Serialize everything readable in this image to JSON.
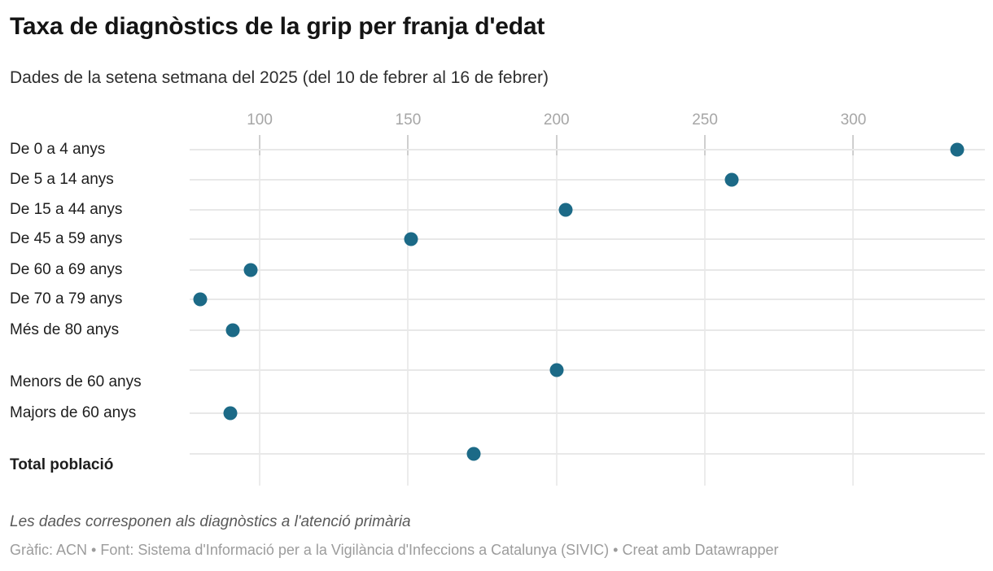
{
  "header": {
    "title": "Taxa de diagnòstics de la grip per franja d'edat",
    "subtitle": "Dades de la setena setmana del 2025 (del 10 de febrer al 16 de febrer)"
  },
  "chart_data": {
    "type": "scatter",
    "variant": "dot-plot",
    "title": "Taxa de diagnòstics de la grip per franja d'edat",
    "subtitle": "Dades de la setena setmana del 2025 (del 10 de febrer al 16 de febrer)",
    "categories": [
      "De 0 a 4 anys",
      "De 5 a 14 anys",
      "De 15 a 44 anys",
      "De 45 a 59 anys",
      "De 60 a 69 anys",
      "De 70 a 79 anys",
      "Més de 80 anys",
      "Menors de 60 anys",
      "Majors de 60 anys",
      "Total població"
    ],
    "values": [
      335,
      259,
      203,
      151,
      97,
      80,
      91,
      200,
      90,
      172
    ],
    "bold_categories": [
      "Total població"
    ],
    "group_gaps_after": [
      "Més de 80 anys",
      "Majors de 60 anys"
    ],
    "x_ticks": [
      100,
      150,
      200,
      250,
      300
    ],
    "xlim": [
      76.4,
      344.3
    ],
    "grid": "on",
    "legend": "none",
    "xlabel": "",
    "ylabel": "",
    "dot_color": "#1c6a87"
  },
  "footer": {
    "note": "Les dades corresponen als diagnòstics a l'atenció primària",
    "credit": "Gràfic: ACN • Font: Sistema d'Informació per a la Vigilància d'Infeccions a Catalunya (SIVIC) • Creat amb Datawrapper"
  }
}
